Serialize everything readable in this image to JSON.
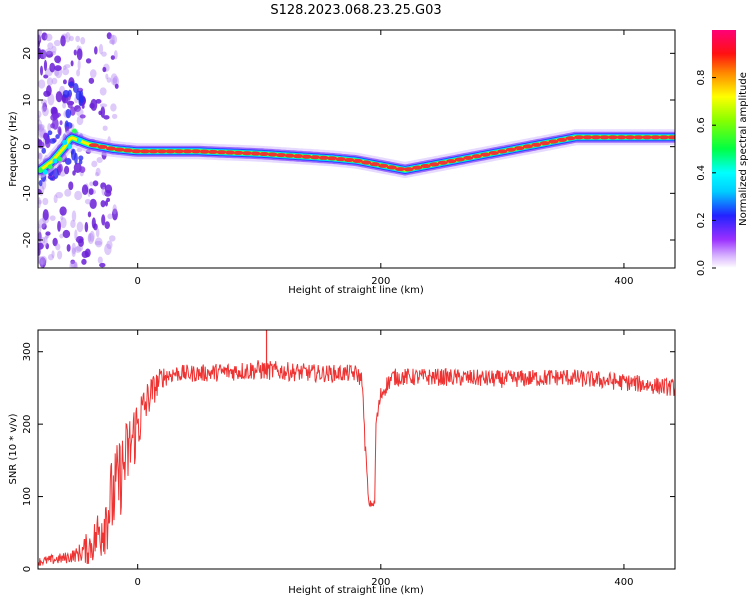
{
  "figure_title": "S128.2023.068.23.25.G03",
  "colors": {
    "snr_line": "#ee3333",
    "ridge_core": "#ee3333",
    "scatter": "#7b2fe0",
    "frame": "#000000"
  },
  "chart_data": [
    {
      "type": "heatmap",
      "title": "",
      "xlabel": "Height of straight line (km)",
      "ylabel": "Frequency (Hz)",
      "xlim": [
        -82,
        442
      ],
      "ylim": [
        -26,
        25
      ],
      "xticks": [
        0,
        200,
        400
      ],
      "xtick_labels": [
        "0",
        "200",
        "400"
      ],
      "yticks": [
        20,
        10,
        0,
        -10,
        -20
      ],
      "ytick_labels": [
        "20",
        "10",
        "0",
        "-10",
        "-20"
      ],
      "colorbar": {
        "label": "Normalized spectral amplitude",
        "range": [
          0,
          1
        ],
        "ticks": [
          0.0,
          0.2,
          0.4,
          0.6,
          0.8
        ],
        "tick_labels": [
          "0.0",
          "0.2",
          "0.4",
          "0.6",
          "0.8"
        ]
      },
      "ridge": {
        "x": [
          -80,
          -70,
          -60,
          -55,
          -45,
          -40,
          -30,
          -20,
          0,
          50,
          100,
          130,
          160,
          180,
          200,
          220,
          240,
          260,
          280,
          300,
          320,
          340,
          360,
          400,
          442
        ],
        "y": [
          -5,
          -3,
          0,
          2,
          1,
          0.5,
          0,
          -0.5,
          -1,
          -1,
          -1.5,
          -2,
          -2.5,
          -3,
          -4,
          -5,
          -4,
          -3,
          -2,
          -1,
          0,
          1,
          2,
          2,
          2
        ],
        "amp": [
          0.35,
          0.35,
          0.4,
          0.45,
          0.55,
          0.6,
          0.65,
          0.7,
          0.85,
          0.9,
          0.88,
          0.88,
          0.85,
          0.85,
          0.85,
          0.85,
          0.85,
          0.85,
          0.85,
          0.85,
          0.88,
          0.9,
          0.9,
          0.9,
          0.9
        ]
      }
    },
    {
      "type": "line",
      "title": "",
      "xlabel": "Height of straight line (km)",
      "ylabel": "SNR (10 * v/v)",
      "xlim": [
        -82,
        442
      ],
      "ylim": [
        0,
        330
      ],
      "xticks": [
        0,
        200,
        400
      ],
      "xtick_labels": [
        "0",
        "200",
        "400"
      ],
      "yticks": [
        0,
        100,
        200,
        300
      ],
      "ytick_labels": [
        "0",
        "100",
        "200",
        "300"
      ],
      "series": [
        {
          "name": "SNR",
          "x": [
            -82,
            -60,
            -50,
            -40,
            -35,
            -30,
            -20,
            -10,
            0,
            10,
            20,
            30,
            50,
            100,
            150,
            180,
            185,
            186,
            188,
            190,
            195,
            196,
            200,
            205,
            210,
            250,
            300,
            350,
            400,
            442
          ],
          "y": [
            10,
            15,
            20,
            30,
            40,
            60,
            100,
            150,
            200,
            240,
            265,
            270,
            270,
            275,
            270,
            270,
            260,
            200,
            150,
            90,
            90,
            200,
            240,
            255,
            265,
            265,
            262,
            265,
            258,
            250
          ],
          "noise": [
            6,
            8,
            10,
            25,
            30,
            50,
            60,
            55,
            45,
            25,
            15,
            12,
            12,
            14,
            12,
            12,
            12,
            15,
            10,
            5,
            5,
            10,
            12,
            12,
            12,
            12,
            12,
            12,
            12,
            12
          ]
        }
      ]
    }
  ]
}
